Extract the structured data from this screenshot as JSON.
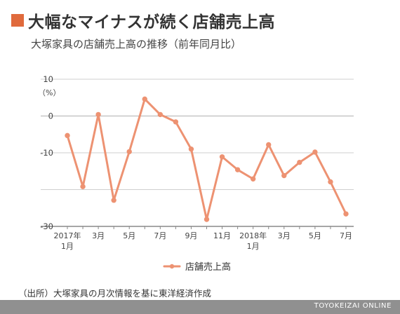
{
  "headline": {
    "text": "大幅なマイナスが続く店舗売上高"
  },
  "subtitle": "大塚家具の店舗売上高の推移（前年同月比）",
  "source": "（出所）大塚家具の月次情報を基に東洋経済作成",
  "footer": "TOYOKEIZAI ONLINE",
  "colors": {
    "accent": "#e06a3c",
    "line": "#ed9272",
    "grid": "#cfcfcf",
    "footer_bg": "#909090"
  },
  "chart_data": {
    "type": "line",
    "unit_label": "（%）",
    "ylim": [
      -30,
      10
    ],
    "yticks": [
      10,
      0,
      -10,
      -30
    ],
    "ytick_labels": [
      "10",
      "0",
      "-10",
      "-30"
    ],
    "x": [
      "2017-01",
      "2017-02",
      "2017-03",
      "2017-04",
      "2017-05",
      "2017-06",
      "2017-07",
      "2017-08",
      "2017-09",
      "2017-10",
      "2017-11",
      "2017-12",
      "2018-01",
      "2018-02",
      "2018-03",
      "2018-04",
      "2018-05",
      "2018-06",
      "2018-07"
    ],
    "xtick_labels": [
      {
        "index": 0,
        "line1": "2017年",
        "line2": "1月"
      },
      {
        "index": 2,
        "line1": "3月",
        "line2": ""
      },
      {
        "index": 4,
        "line1": "5月",
        "line2": ""
      },
      {
        "index": 6,
        "line1": "7月",
        "line2": ""
      },
      {
        "index": 8,
        "line1": "9月",
        "line2": ""
      },
      {
        "index": 10,
        "line1": "11月",
        "line2": ""
      },
      {
        "index": 12,
        "line1": "2018年",
        "line2": "1月"
      },
      {
        "index": 14,
        "line1": "3月",
        "line2": ""
      },
      {
        "index": 16,
        "line1": "5月",
        "line2": ""
      },
      {
        "index": 18,
        "line1": "7月",
        "line2": ""
      }
    ],
    "series": [
      {
        "name": "店舗売上高",
        "values": [
          -5.3,
          -19.2,
          0.4,
          -22.9,
          -9.7,
          4.6,
          0.4,
          -1.6,
          -9.0,
          -28.1,
          -11.1,
          -14.6,
          -17.1,
          -7.8,
          -16.2,
          -12.6,
          -9.8,
          -17.9,
          -26.6
        ]
      }
    ],
    "grid": true,
    "legend": "bottom-center"
  }
}
